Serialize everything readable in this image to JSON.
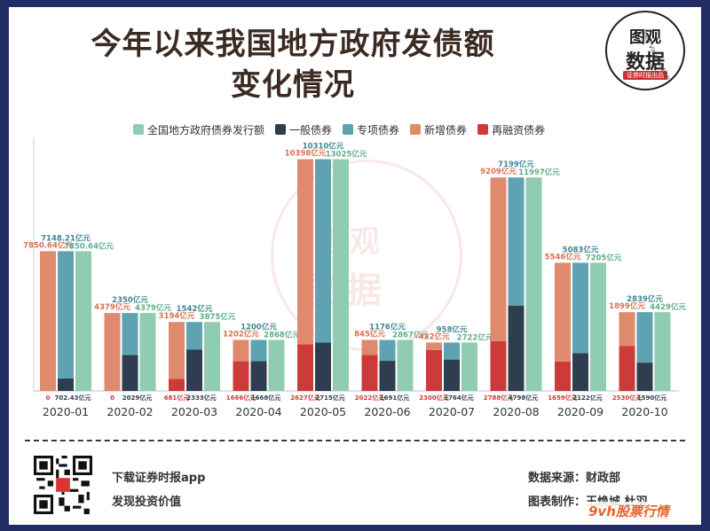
{
  "header": {
    "title_line1": "今年以来我国地方政府发债额",
    "title_line2": "变化情况"
  },
  "logo": {
    "line1": "图观",
    "line2": "数据",
    "tag": "证券时报出品",
    "arc": "Data Visualization"
  },
  "watermark": {
    "line1": "图观",
    "line2": "数据"
  },
  "colors": {
    "total": "#8fccb2",
    "general": "#2e3e4f",
    "special": "#5fa3b3",
    "new": "#e08a6d",
    "refinance": "#cc3a3a",
    "background": "#1f2d63"
  },
  "chart_data": {
    "type": "bar",
    "categories": [
      "2020-01",
      "2020-02",
      "2020-03",
      "2020-04",
      "2020-05",
      "2020-06",
      "2020-07",
      "2020-08",
      "2020-09",
      "2020-10"
    ],
    "ylim": [
      0,
      14000
    ],
    "grid": false,
    "legend_position": "top",
    "unit": "亿元",
    "series": [
      {
        "name": "全国地方政府债券发行额",
        "key": "total",
        "values": [
          7850.64,
          4379,
          3875,
          2868,
          13025,
          2867,
          2722,
          11997,
          7205,
          4429
        ],
        "labels": [
          "7850.64亿元",
          "4379亿元",
          "3875亿元",
          "2868亿元",
          "13025亿元",
          "2867亿元",
          "2722亿元",
          "11997亿元",
          "7205亿元",
          "4429亿元"
        ]
      },
      {
        "name": "一般债券",
        "key": "general",
        "values": [
          702.43,
          2029,
          2333,
          1668,
          2715,
          1691,
          1764,
          4798,
          2122,
          1590
        ],
        "labels": [
          "702.43亿元",
          "2029亿元",
          "2333亿元",
          "1668亿元",
          "2715亿元",
          "1691亿元",
          "1764亿元",
          "4798亿元",
          "2122亿元",
          "1590亿元"
        ]
      },
      {
        "name": "专项债券",
        "key": "special",
        "values": [
          7148.21,
          2350,
          1542,
          1200,
          10310,
          1176,
          958,
          7199,
          5083,
          2839
        ],
        "labels": [
          "7148.21亿元",
          "2350亿元",
          "1542亿元",
          "1200亿元",
          "10310亿元",
          "1176亿元",
          "958亿元",
          "7199亿元",
          "5083亿元",
          "2839亿元"
        ]
      },
      {
        "name": "新增债券",
        "key": "new",
        "values": [
          7850.64,
          4379,
          3194,
          1202,
          10398,
          845,
          422,
          9209,
          5546,
          1899
        ],
        "labels": [
          "7850.64亿元",
          "4379亿元",
          "3194亿元",
          "1202亿元",
          "10398亿元",
          "845亿元",
          "422亿元",
          "9209亿元",
          "5546亿元",
          "1899亿元"
        ]
      },
      {
        "name": "再融资债券",
        "key": "refinance",
        "values": [
          0,
          0,
          681,
          1666,
          2627,
          2022,
          2300,
          2788,
          1659,
          2530
        ],
        "labels": [
          "0",
          "0",
          "681亿元",
          "1666亿元",
          "2627亿元",
          "2022亿元",
          "2300亿元",
          "2788亿元",
          "1659亿元",
          "2530亿元"
        ]
      }
    ]
  },
  "footer": {
    "app_line1": "下载证券时报app",
    "app_line2": "发现投资价值",
    "source": "数据来源：财政部",
    "maker": "图表制作：王焕城 杜羽",
    "brand": "9vh股票行情"
  }
}
